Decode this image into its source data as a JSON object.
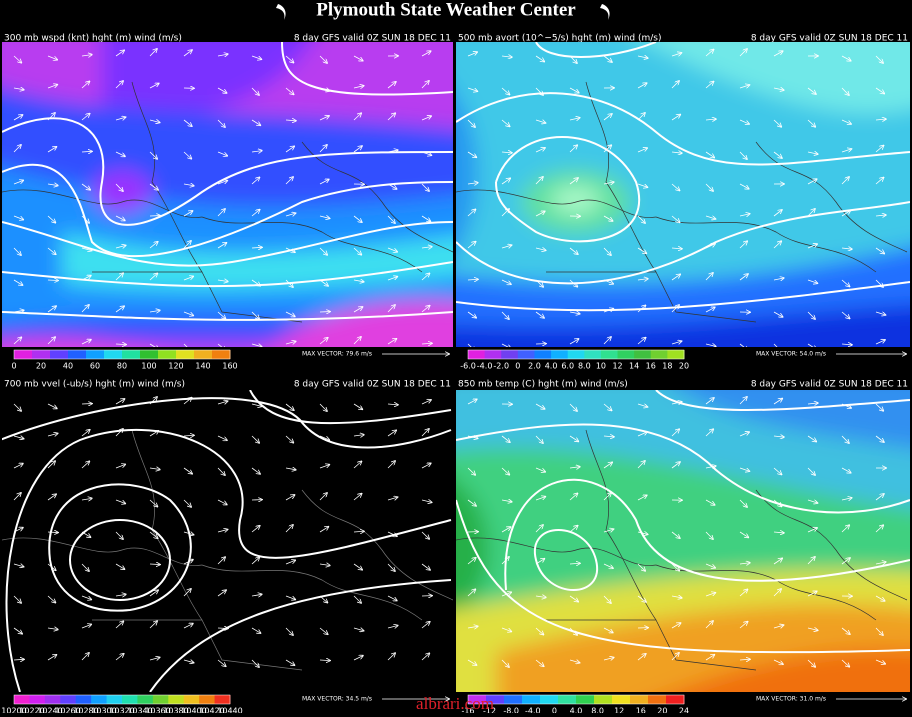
{
  "header": {
    "title": "Plymouth State Weather Center"
  },
  "panels": [
    {
      "title_left": "300 mb wspd (knt) hght (m) wind (m/s)",
      "title_right": "8 day GFS valid 0Z SUN 18 DEC 11",
      "colorbar_labels": [
        "0",
        "20",
        "40",
        "60",
        "80",
        "100",
        "120",
        "140",
        "160"
      ],
      "max_vector": "MAX VECTOR: 79.6 m/s"
    },
    {
      "title_left": "500 mb avort (10^−5/s) hght (m) wind (m/s)",
      "title_right": "8 day GFS valid 0Z SUN 18 DEC 11",
      "colorbar_labels": [
        "-6.0",
        "-4.0",
        "-2.0",
        "0",
        "2.0",
        "4.0",
        "6.0",
        "8.0",
        "10",
        "12",
        "14",
        "16",
        "18",
        "20"
      ],
      "max_vector": "MAX VECTOR: 54.0 m/s"
    },
    {
      "title_left": "700 mb vvel (-ub/s) hght (m) wind (m/s)",
      "title_right": "8 day GFS valid 0Z SUN 18 DEC 11",
      "colorbar_labels": [
        "10200",
        "10220",
        "10240",
        "10260",
        "10280",
        "10300",
        "10320",
        "10340",
        "10360",
        "10380",
        "10400",
        "10420",
        "10440"
      ],
      "max_vector": "MAX VECTOR: 34.5 m/s"
    },
    {
      "title_left": "850 mb temp (C) hght (m) wind (m/s)",
      "title_right": "8 day GFS valid 0Z SUN 18 DEC 11",
      "colorbar_labels": [
        "-16",
        "-12",
        "-8.0",
        "-4.0",
        "0",
        "4.0",
        "8.0",
        "12",
        "16",
        "20",
        "24"
      ],
      "max_vector": "MAX VECTOR: 31.0 m/s"
    }
  ],
  "watermark": "albrari.com"
}
